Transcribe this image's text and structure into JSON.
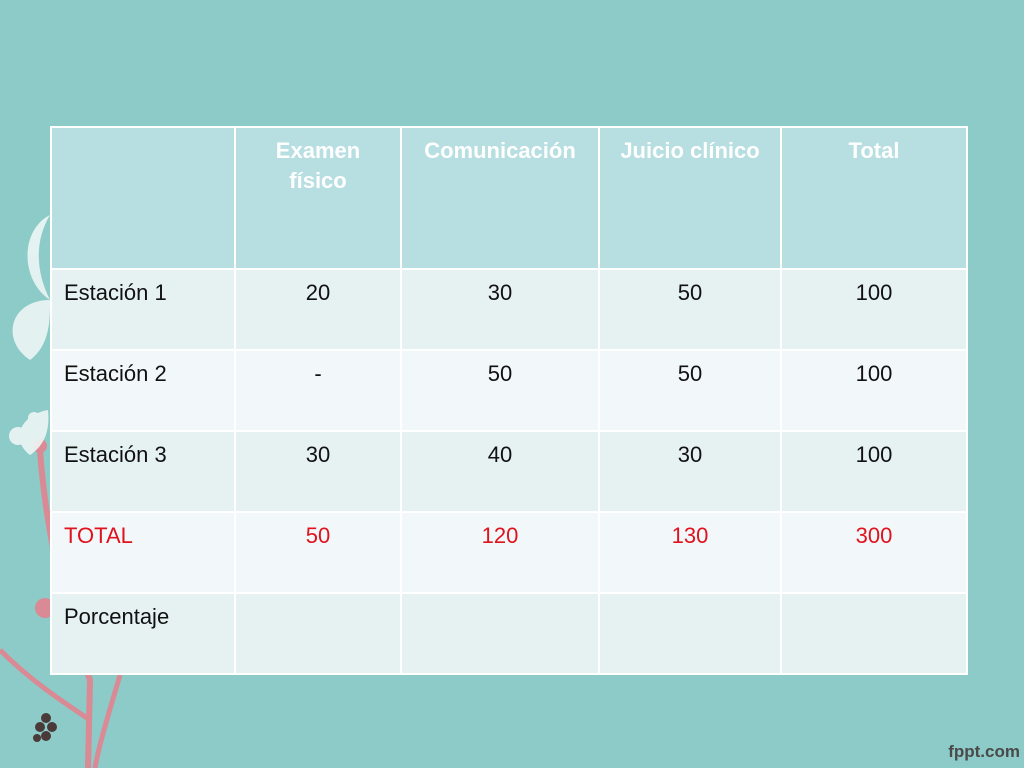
{
  "table": {
    "headers": [
      "",
      "Examen físico",
      "Comunicación",
      "Juicio clínico",
      "Total"
    ],
    "rows": [
      {
        "label": "Estación 1",
        "values": [
          "20",
          "30",
          "50",
          "100"
        ]
      },
      {
        "label": "Estación 2",
        "values": [
          "-",
          "50",
          "50",
          "100"
        ]
      },
      {
        "label": "Estación 3",
        "values": [
          "30",
          "40",
          "30",
          "100"
        ]
      },
      {
        "label": "TOTAL",
        "values": [
          "50",
          "120",
          "130",
          "300"
        ]
      },
      {
        "label": "Porcentaje",
        "values": [
          "",
          "",
          "",
          ""
        ]
      }
    ]
  },
  "branding": {
    "logo": "fppt.com"
  },
  "colors": {
    "background": "#8ccbc7",
    "header_fill": "#b7dfe1",
    "row_fill_a": "#e6f2f2",
    "row_fill_b": "#f2f8f9",
    "total_text": "#e0121e",
    "decor_pink": "#d98a95",
    "decor_white": "#eef6f6"
  },
  "decor": {
    "icons": [
      "leaf-swirl-icon",
      "stem-icon",
      "flower-icon"
    ]
  }
}
